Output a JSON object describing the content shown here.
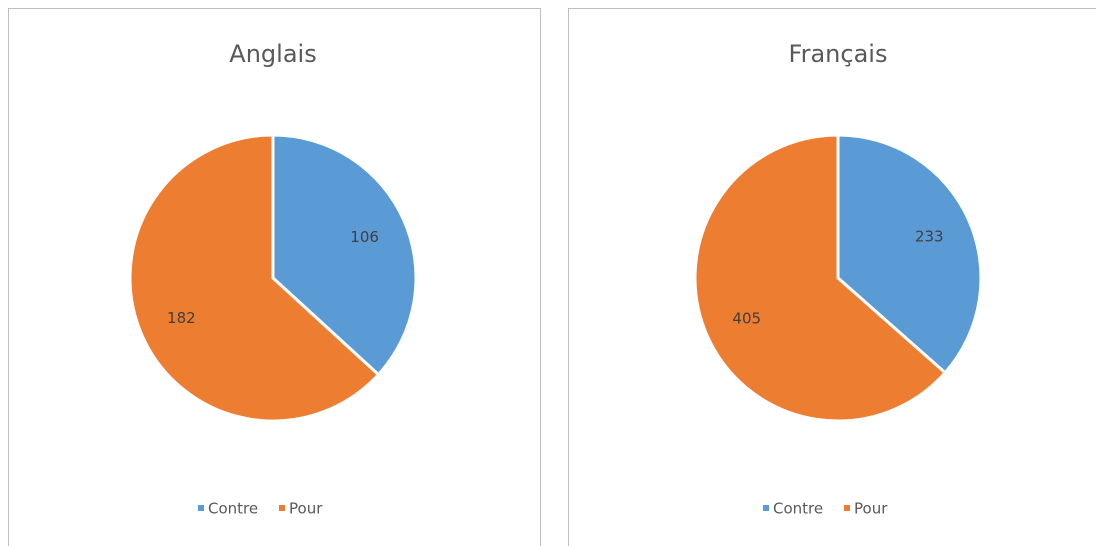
{
  "chart_data": [
    {
      "type": "pie",
      "title": "Anglais",
      "categories": [
        "Contre",
        "Pour"
      ],
      "values": [
        106,
        182
      ],
      "colors": [
        "#5b9bd5",
        "#ed7d31"
      ]
    },
    {
      "type": "pie",
      "title": "Français",
      "categories": [
        "Contre",
        "Pour"
      ],
      "values": [
        233,
        405
      ],
      "colors": [
        "#5b9bd5",
        "#ed7d31"
      ]
    }
  ]
}
